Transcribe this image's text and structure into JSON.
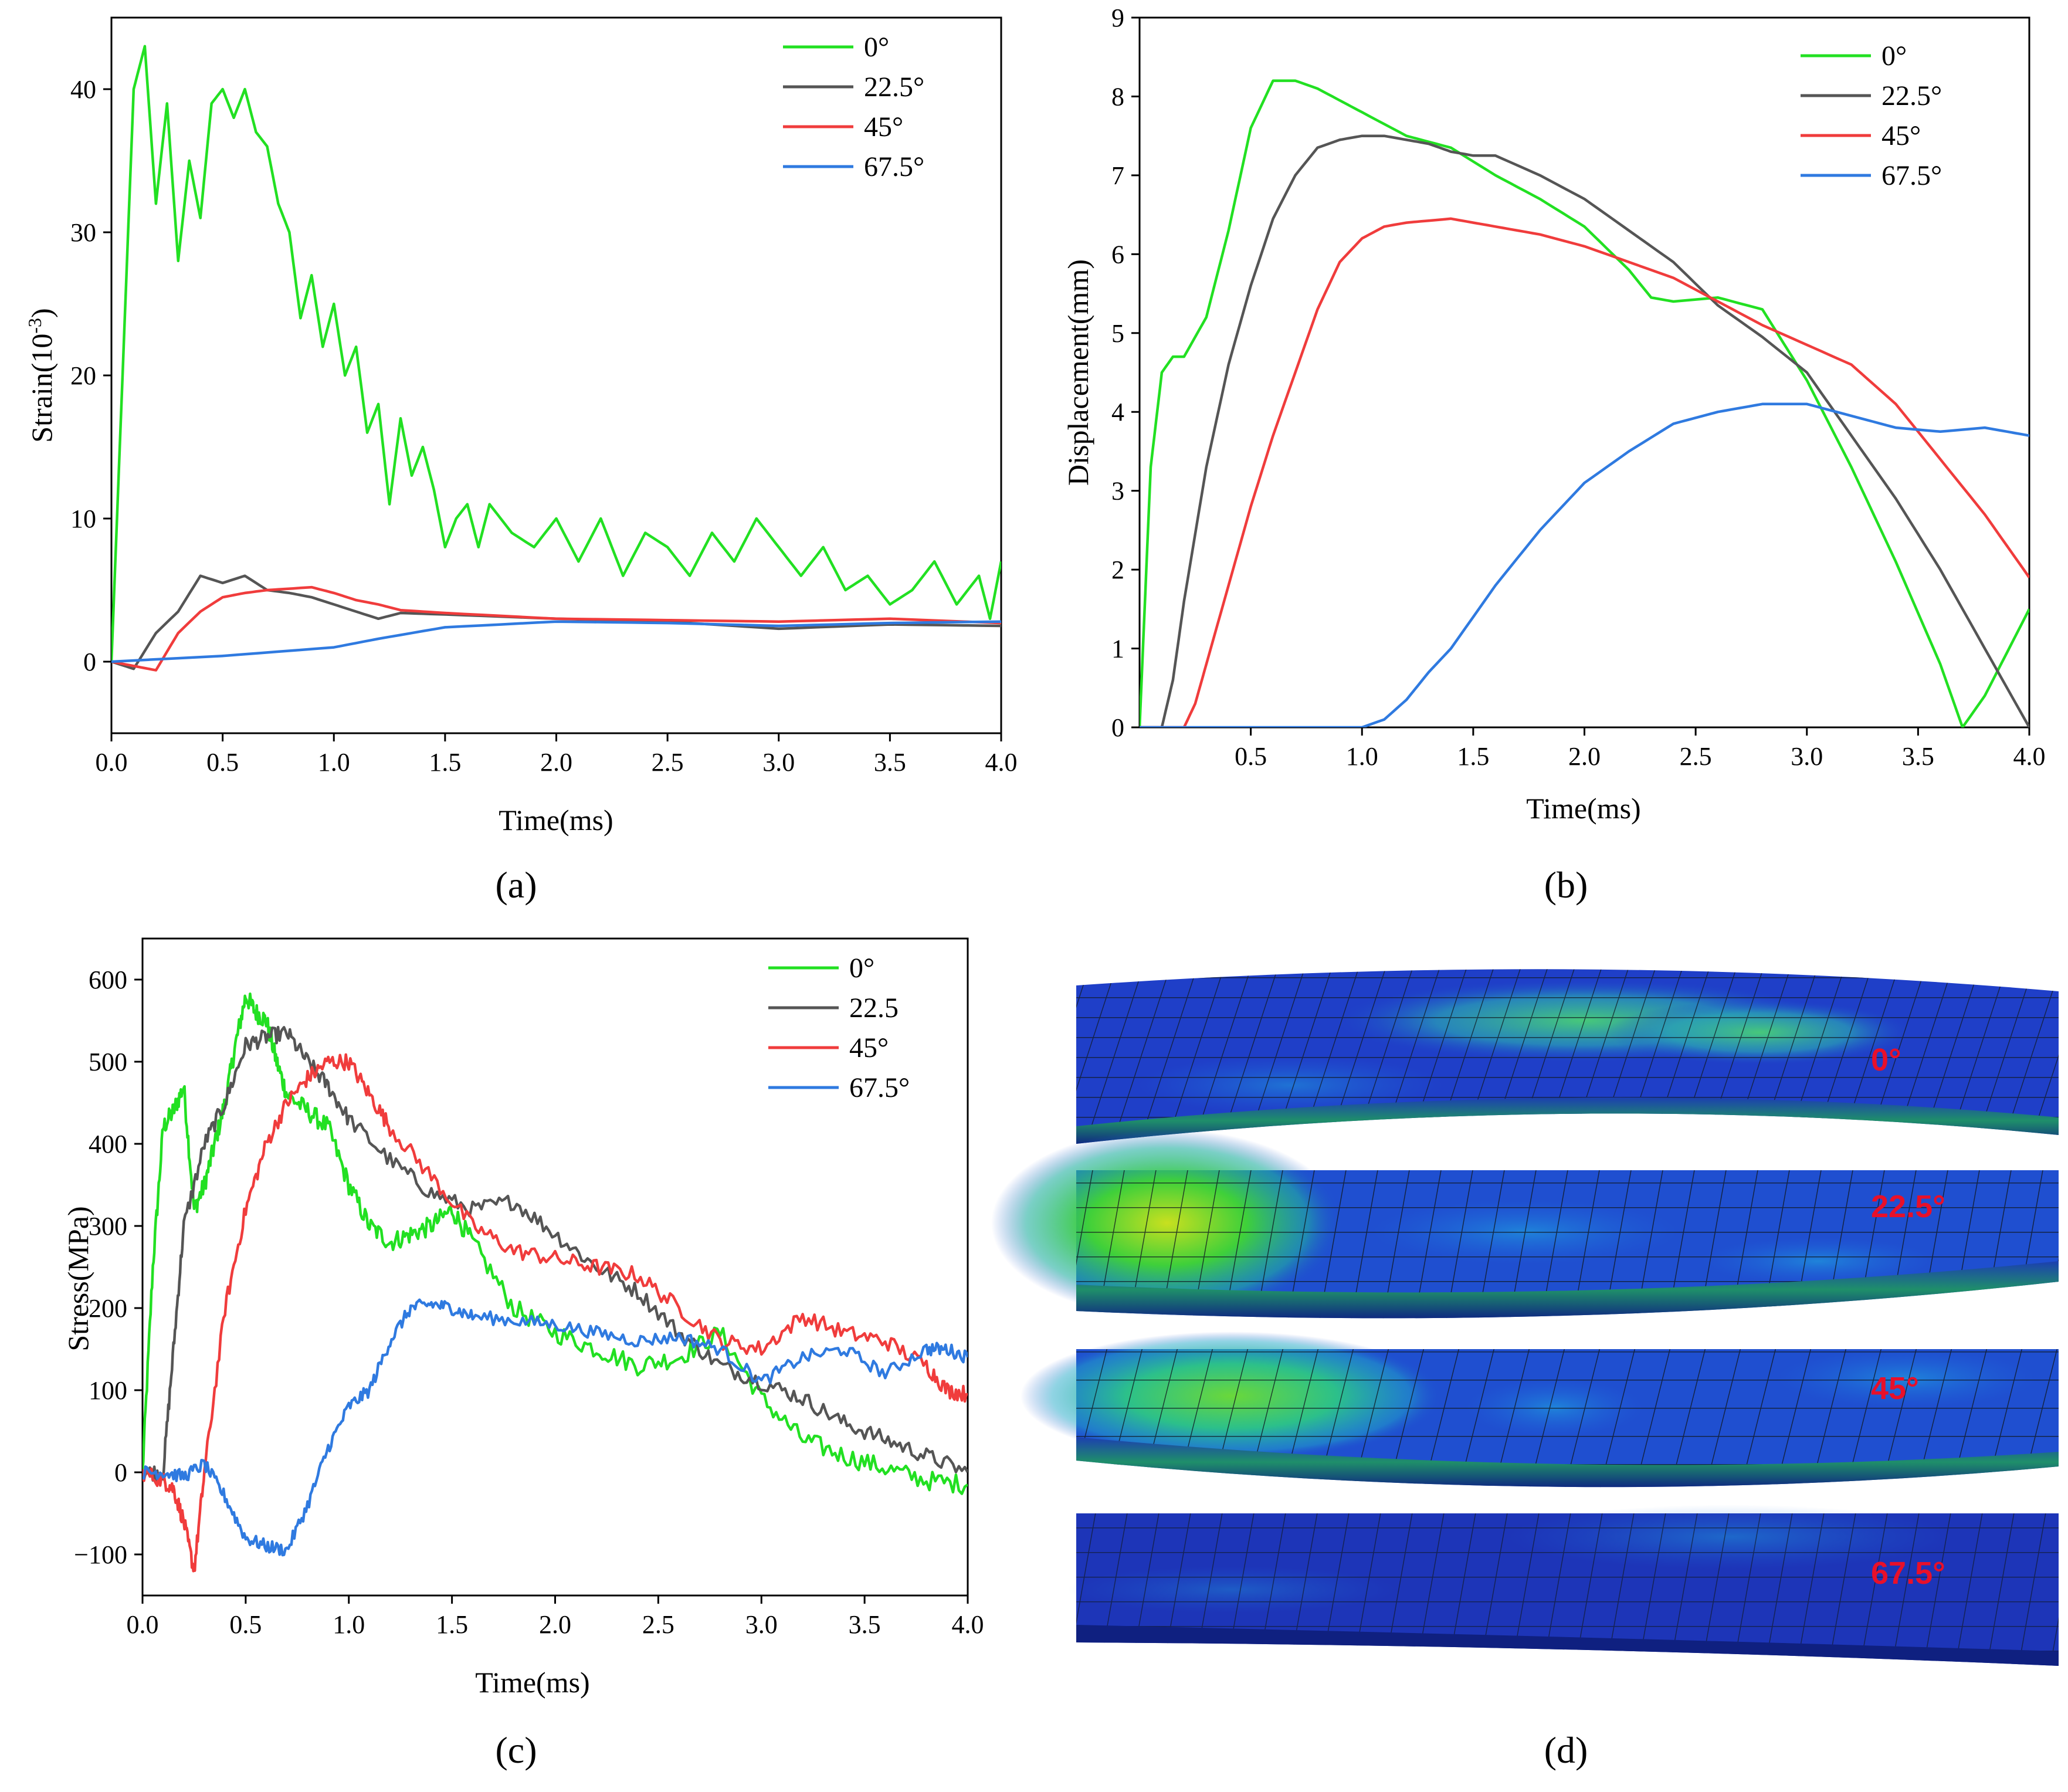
{
  "colors": {
    "green": "#22e022",
    "gray": "#555555",
    "red": "#f03c3c",
    "blue": "#2f7ae0"
  },
  "panel_labels": [
    "(a)",
    "(b)",
    "(c)",
    "(d)"
  ],
  "chart_data": [
    {
      "id": "a",
      "type": "line",
      "xlabel": "Time(ms)",
      "ylabel": "Strain(10-3)",
      "ylabel_base": "Strain(10",
      "ylabel_sup": "-3",
      "ylabel_close": ")",
      "xlim": [
        0,
        4
      ],
      "ylim": [
        -5,
        45
      ],
      "xticks": [
        0,
        0.5,
        1,
        1.5,
        2,
        2.5,
        3,
        3.5,
        4
      ],
      "xtick_labels": [
        "0.0",
        "0.5",
        "1.0",
        "1.5",
        "2.0",
        "2.5",
        "3.0",
        "3.5",
        "4.0"
      ],
      "yticks": [
        0,
        10,
        20,
        30,
        40
      ],
      "ytick_labels": [
        "0",
        "10",
        "20",
        "30",
        "40"
      ],
      "legend": [
        "0°",
        "22.5°",
        "45°",
        "67.5°"
      ],
      "series": [
        {
          "name": "0°",
          "color": "green",
          "noise": 0,
          "x": [
            0,
            0.05,
            0.1,
            0.15,
            0.2,
            0.25,
            0.3,
            0.35,
            0.4,
            0.45,
            0.5,
            0.55,
            0.6,
            0.65,
            0.7,
            0.75,
            0.8,
            0.85,
            0.9,
            0.95,
            1.0,
            1.05,
            1.1,
            1.15,
            1.2,
            1.25,
            1.3,
            1.35,
            1.4,
            1.45,
            1.5,
            1.55,
            1.6,
            1.65,
            1.7,
            1.8,
            1.9,
            2.0,
            2.1,
            2.2,
            2.3,
            2.4,
            2.5,
            2.6,
            2.7,
            2.8,
            2.9,
            3.0,
            3.1,
            3.2,
            3.3,
            3.4,
            3.5,
            3.6,
            3.7,
            3.8,
            3.9,
            3.95,
            4.0
          ],
          "y": [
            0,
            20,
            40,
            43,
            32,
            39,
            28,
            35,
            31,
            39,
            40,
            38,
            40,
            37,
            36,
            32,
            30,
            24,
            27,
            22,
            25,
            20,
            22,
            16,
            18,
            11,
            17,
            13,
            15,
            12,
            8,
            10,
            11,
            8,
            11,
            9,
            8,
            10,
            7,
            10,
            6,
            9,
            8,
            6,
            9,
            7,
            10,
            8,
            6,
            8,
            5,
            6,
            4,
            5,
            7,
            4,
            6,
            3,
            7
          ]
        },
        {
          "name": "22.5°",
          "color": "gray",
          "noise": 0,
          "x": [
            0,
            0.1,
            0.2,
            0.3,
            0.4,
            0.5,
            0.6,
            0.7,
            0.8,
            0.9,
            1.0,
            1.1,
            1.2,
            1.3,
            1.5,
            2.0,
            2.5,
            3.0,
            3.5,
            4.0
          ],
          "y": [
            0,
            -0.5,
            2,
            3.5,
            6,
            5.5,
            6,
            5,
            4.8,
            4.5,
            4,
            3.5,
            3,
            3.4,
            3.3,
            3,
            2.8,
            2.3,
            2.6,
            2.5
          ]
        },
        {
          "name": "45°",
          "color": "red",
          "noise": 0,
          "x": [
            0,
            0.1,
            0.2,
            0.3,
            0.4,
            0.5,
            0.6,
            0.7,
            0.8,
            0.9,
            1.0,
            1.1,
            1.2,
            1.3,
            1.5,
            2.0,
            2.5,
            3.0,
            3.5,
            4.0
          ],
          "y": [
            0,
            -0.3,
            -0.6,
            2,
            3.5,
            4.5,
            4.8,
            5,
            5.1,
            5.2,
            4.8,
            4.3,
            4,
            3.6,
            3.4,
            3,
            2.9,
            2.8,
            3,
            2.7
          ]
        },
        {
          "name": "67.5°",
          "color": "blue",
          "noise": 0,
          "x": [
            0,
            0.5,
            1.0,
            1.2,
            1.5,
            2.0,
            2.5,
            3.0,
            3.5,
            4.0
          ],
          "y": [
            0,
            0.4,
            1,
            1.6,
            2.4,
            2.8,
            2.7,
            2.5,
            2.7,
            2.8
          ]
        }
      ]
    },
    {
      "id": "b",
      "type": "line",
      "xlabel": "Time(ms)",
      "ylabel": "Displacement(mm)",
      "xlim": [
        0,
        4
      ],
      "ylim": [
        0,
        9
      ],
      "xticks": [
        0.5,
        1,
        1.5,
        2,
        2.5,
        3,
        3.5,
        4
      ],
      "xtick_labels": [
        "0.5",
        "1.0",
        "1.5",
        "2.0",
        "2.5",
        "3.0",
        "3.5",
        "4.0"
      ],
      "yticks": [
        0,
        1,
        2,
        3,
        4,
        5,
        6,
        7,
        8,
        9
      ],
      "ytick_labels": [
        "0",
        "1",
        "2",
        "3",
        "4",
        "5",
        "6",
        "7",
        "8",
        "9"
      ],
      "legend": [
        "0°",
        "22.5°",
        "45°",
        "67.5°"
      ],
      "series": [
        {
          "name": "0°",
          "color": "green",
          "noise": 0,
          "x": [
            0,
            0.05,
            0.1,
            0.15,
            0.2,
            0.3,
            0.4,
            0.5,
            0.6,
            0.7,
            0.8,
            0.9,
            1.0,
            1.2,
            1.4,
            1.6,
            1.8,
            2.0,
            2.2,
            2.3,
            2.4,
            2.6,
            2.8,
            3.0,
            3.2,
            3.4,
            3.6,
            3.7,
            3.8,
            4.0
          ],
          "y": [
            0,
            3.3,
            4.5,
            4.7,
            4.7,
            5.2,
            6.3,
            7.6,
            8.2,
            8.2,
            8.1,
            7.95,
            7.8,
            7.5,
            7.35,
            7.0,
            6.7,
            6.35,
            5.8,
            5.45,
            5.4,
            5.45,
            5.3,
            4.4,
            3.3,
            2.1,
            0.8,
            0,
            0.4,
            1.5
          ]
        },
        {
          "name": "22.5°",
          "color": "gray",
          "noise": 0,
          "x": [
            0,
            0.1,
            0.15,
            0.2,
            0.3,
            0.4,
            0.5,
            0.6,
            0.7,
            0.8,
            0.9,
            1.0,
            1.1,
            1.2,
            1.3,
            1.4,
            1.5,
            1.6,
            1.8,
            2.0,
            2.2,
            2.4,
            2.6,
            2.8,
            3.0,
            3.2,
            3.4,
            3.6,
            3.8,
            4.0
          ],
          "y": [
            0,
            0,
            0.6,
            1.6,
            3.3,
            4.6,
            5.6,
            6.45,
            7.0,
            7.35,
            7.45,
            7.5,
            7.5,
            7.45,
            7.4,
            7.3,
            7.25,
            7.25,
            7.0,
            6.7,
            6.3,
            5.9,
            5.35,
            4.95,
            4.5,
            3.7,
            2.9,
            2.0,
            1.0,
            0
          ]
        },
        {
          "name": "45°",
          "color": "red",
          "noise": 0,
          "x": [
            0,
            0.2,
            0.25,
            0.3,
            0.4,
            0.5,
            0.6,
            0.7,
            0.8,
            0.9,
            1.0,
            1.1,
            1.2,
            1.4,
            1.6,
            1.8,
            2.0,
            2.2,
            2.4,
            2.6,
            2.8,
            3.0,
            3.2,
            3.4,
            3.6,
            3.8,
            4.0
          ],
          "y": [
            0,
            0,
            0.3,
            0.8,
            1.8,
            2.8,
            3.7,
            4.5,
            5.3,
            5.9,
            6.2,
            6.35,
            6.4,
            6.45,
            6.35,
            6.25,
            6.1,
            5.9,
            5.7,
            5.4,
            5.1,
            4.85,
            4.6,
            4.1,
            3.4,
            2.7,
            1.9
          ]
        },
        {
          "name": "67.5°",
          "color": "blue",
          "noise": 0,
          "x": [
            0,
            1.0,
            1.1,
            1.2,
            1.3,
            1.4,
            1.6,
            1.8,
            2.0,
            2.2,
            2.4,
            2.6,
            2.8,
            3.0,
            3.2,
            3.4,
            3.6,
            3.8,
            4.0
          ],
          "y": [
            0,
            0,
            0.1,
            0.35,
            0.7,
            1.0,
            1.8,
            2.5,
            3.1,
            3.5,
            3.85,
            4.0,
            4.1,
            4.1,
            3.95,
            3.8,
            3.75,
            3.8,
            3.7
          ]
        }
      ]
    },
    {
      "id": "c",
      "type": "line",
      "xlabel": "Time(ms)",
      "ylabel": "Stress(MPa)",
      "xlim": [
        0,
        4
      ],
      "ylim": [
        -150,
        650
      ],
      "xticks": [
        0,
        0.5,
        1,
        1.5,
        2,
        2.5,
        3,
        3.5,
        4
      ],
      "xtick_labels": [
        "0.0",
        "0.5",
        "1.0",
        "1.5",
        "2.0",
        "2.5",
        "3.0",
        "3.5",
        "4.0"
      ],
      "yticks": [
        -100,
        0,
        100,
        200,
        300,
        400,
        500,
        600
      ],
      "ytick_labels": [
        "−100",
        "0",
        "100",
        "200",
        "300",
        "400",
        "500",
        "600"
      ],
      "legend": [
        "0°",
        "22.5",
        "45°",
        "67.5°"
      ],
      "series": [
        {
          "name": "0°",
          "color": "green",
          "noise": 12,
          "x": [
            0,
            0.05,
            0.1,
            0.15,
            0.2,
            0.25,
            0.3,
            0.35,
            0.4,
            0.45,
            0.5,
            0.55,
            0.6,
            0.65,
            0.7,
            0.8,
            0.9,
            1.0,
            1.1,
            1.2,
            1.3,
            1.4,
            1.5,
            1.6,
            1.8,
            2.0,
            2.2,
            2.4,
            2.6,
            2.8,
            3.0,
            3.2,
            3.4,
            3.6,
            3.8,
            4.0
          ],
          "y": [
            0,
            250,
            420,
            440,
            470,
            320,
            350,
            400,
            450,
            520,
            580,
            560,
            550,
            500,
            460,
            440,
            420,
            350,
            300,
            280,
            290,
            300,
            320,
            280,
            200,
            170,
            150,
            130,
            140,
            170,
            90,
            40,
            20,
            5,
            -10,
            -15
          ]
        },
        {
          "name": "22.5",
          "color": "gray",
          "noise": 10,
          "x": [
            0,
            0.1,
            0.15,
            0.2,
            0.3,
            0.4,
            0.5,
            0.6,
            0.7,
            0.8,
            0.9,
            1.0,
            1.2,
            1.4,
            1.6,
            1.8,
            2.0,
            2.2,
            2.4,
            2.6,
            2.8,
            3.0,
            3.2,
            3.4,
            3.6,
            3.8,
            4.0
          ],
          "y": [
            0,
            0,
            150,
            300,
            400,
            450,
            520,
            530,
            535,
            500,
            470,
            430,
            380,
            340,
            320,
            330,
            290,
            250,
            220,
            170,
            130,
            110,
            90,
            60,
            40,
            20,
            0
          ]
        },
        {
          "name": "45°",
          "color": "red",
          "noise": 10,
          "x": [
            0,
            0.1,
            0.15,
            0.2,
            0.25,
            0.3,
            0.4,
            0.5,
            0.6,
            0.7,
            0.8,
            0.9,
            1.0,
            1.1,
            1.2,
            1.4,
            1.6,
            1.8,
            2.0,
            2.2,
            2.4,
            2.6,
            2.8,
            3.0,
            3.2,
            3.4,
            3.6,
            3.8,
            3.9,
            4.0
          ],
          "y": [
            0,
            -10,
            -20,
            -60,
            -120,
            0,
            200,
            320,
            400,
            450,
            480,
            500,
            500,
            460,
            420,
            360,
            300,
            270,
            260,
            250,
            240,
            200,
            160,
            150,
            190,
            170,
            160,
            130,
            100,
            95
          ]
        },
        {
          "name": "67.5°",
          "color": "blue",
          "noise": 8,
          "x": [
            0,
            0.1,
            0.2,
            0.3,
            0.4,
            0.5,
            0.6,
            0.7,
            0.8,
            0.9,
            1.0,
            1.1,
            1.2,
            1.3,
            1.4,
            1.5,
            1.6,
            1.8,
            2.0,
            2.2,
            2.4,
            2.6,
            2.8,
            3.0,
            3.2,
            3.4,
            3.6,
            3.8,
            3.9,
            4.0
          ],
          "y": [
            0,
            0,
            -5,
            10,
            -30,
            -80,
            -90,
            -95,
            -40,
            30,
            80,
            100,
            160,
            200,
            205,
            200,
            190,
            185,
            180,
            170,
            160,
            165,
            150,
            110,
            140,
            150,
            120,
            150,
            150,
            140
          ]
        }
      ]
    }
  ],
  "figure_d": {
    "labels": [
      "0°",
      "22.5°",
      "45°",
      "67.5°"
    ]
  }
}
